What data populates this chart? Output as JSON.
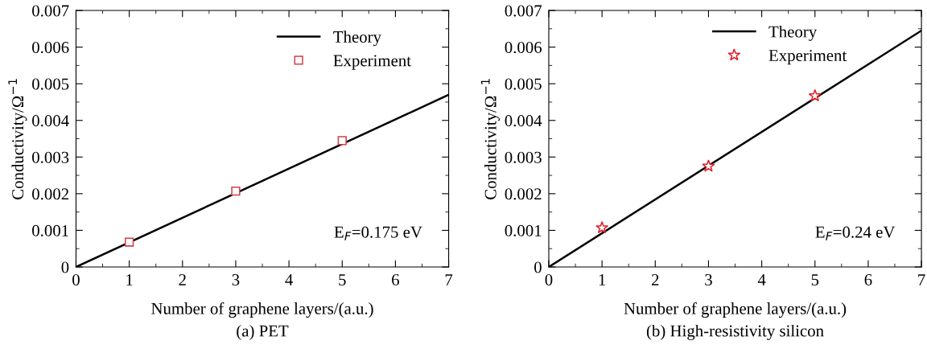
{
  "chart_data": [
    {
      "type": "line",
      "xlabel": "Number of graphene layers/(a.u.)",
      "ylabel": "Conductivity/Ω$^{−1}$",
      "xlim": [
        0,
        7
      ],
      "ylim": [
        0,
        0.007
      ],
      "xticks": [
        0,
        1,
        2,
        3,
        4,
        5,
        6,
        7
      ],
      "yticks": [
        0,
        0.001,
        0.002,
        0.003,
        0.004,
        0.005,
        0.006,
        0.007
      ],
      "grid": false,
      "legend": "top right",
      "series": [
        {
          "name": "Theory",
          "color": "#000000",
          "x": [
            0,
            7
          ],
          "values": [
            0,
            0.0047
          ],
          "marker": "none",
          "line_style": "solid"
        },
        {
          "name": "Experiment",
          "type": "scatter",
          "color": "#d0404a",
          "x": [
            1,
            3,
            5
          ],
          "values": [
            0.00068,
            0.00207,
            0.00345
          ],
          "marker": "square"
        }
      ],
      "annotations": [
        "E$_{F}$=0.175 eV",
        "(a) PET"
      ]
    },
    {
      "type": "line",
      "xlabel": "Number of graphene layers/(a.u.)",
      "ylabel": "Conductivity/Ω$^{−1}$",
      "xlim": [
        0,
        7
      ],
      "ylim": [
        0,
        0.007
      ],
      "xticks": [
        0,
        1,
        2,
        3,
        4,
        5,
        6,
        7
      ],
      "yticks": [
        0,
        0.001,
        0.002,
        0.003,
        0.004,
        0.005,
        0.006,
        0.007
      ],
      "grid": false,
      "legend": "top right",
      "series": [
        {
          "name": "Theory",
          "color": "#000000",
          "x": [
            0,
            7
          ],
          "values": [
            0,
            0.00645
          ],
          "marker": "none",
          "line_style": "solid"
        },
        {
          "name": "Experiment",
          "type": "scatter",
          "color": "#e0202a",
          "x": [
            1,
            3,
            5
          ],
          "values": [
            0.00107,
            0.00275,
            0.00467
          ],
          "marker": "star"
        }
      ],
      "annotations": [
        "E$_{F}$=0.24 eV",
        "(b) High-resistivity silicon"
      ]
    }
  ]
}
